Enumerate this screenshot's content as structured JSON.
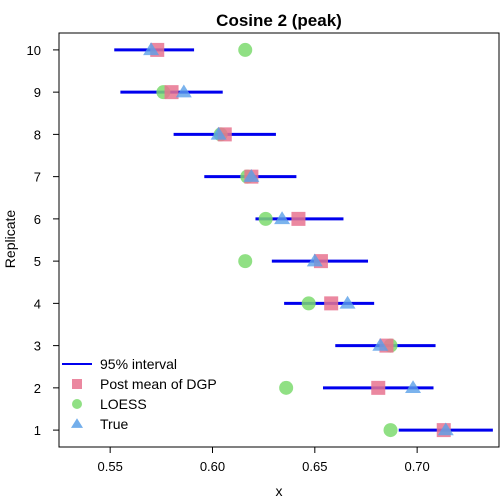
{
  "chart_data": {
    "type": "scatter",
    "title": "Cosine 2 (peak)",
    "xlabel": "x",
    "ylabel": "Replicate",
    "xlim": [
      0.525,
      0.74
    ],
    "ylim": [
      0.6,
      10.4
    ],
    "x_ticks": [
      0.55,
      0.6,
      0.65,
      0.7
    ],
    "x_tick_labels": [
      "0.55",
      "0.60",
      "0.65",
      "0.70"
    ],
    "y_ticks": [
      1,
      2,
      3,
      4,
      5,
      6,
      7,
      8,
      9,
      10
    ],
    "y_tick_labels": [
      "1",
      "2",
      "3",
      "4",
      "5",
      "6",
      "7",
      "8",
      "9",
      "10"
    ],
    "grid": false,
    "legend_position": "bottom-left",
    "colors": {
      "interval": "#0000ee",
      "post_mean": "#e8738f",
      "loess": "#7ddb6e",
      "true": "#5aa0e8"
    },
    "legend": [
      {
        "label": "95% interval",
        "marker": "line",
        "color_key": "interval"
      },
      {
        "label": "Post mean of DGP",
        "marker": "square",
        "color_key": "post_mean"
      },
      {
        "label": "LOESS",
        "marker": "circle",
        "color_key": "loess"
      },
      {
        "label": "True",
        "marker": "triangle",
        "color_key": "true"
      }
    ],
    "replicates": [
      {
        "replicate": 1,
        "interval": [
          0.691,
          0.737
        ],
        "post_mean": 0.713,
        "loess": 0.687,
        "true": 0.714
      },
      {
        "replicate": 2,
        "interval": [
          0.654,
          0.708
        ],
        "post_mean": 0.681,
        "loess": 0.636,
        "true": 0.698
      },
      {
        "replicate": 3,
        "interval": [
          0.66,
          0.709
        ],
        "post_mean": 0.685,
        "loess": 0.687,
        "true": 0.682
      },
      {
        "replicate": 4,
        "interval": [
          0.635,
          0.679
        ],
        "post_mean": 0.658,
        "loess": 0.647,
        "true": 0.666
      },
      {
        "replicate": 5,
        "interval": [
          0.629,
          0.676
        ],
        "post_mean": 0.653,
        "loess": 0.616,
        "true": 0.65
      },
      {
        "replicate": 6,
        "interval": [
          0.621,
          0.664
        ],
        "post_mean": 0.642,
        "loess": 0.626,
        "true": 0.634
      },
      {
        "replicate": 7,
        "interval": [
          0.596,
          0.641
        ],
        "post_mean": 0.619,
        "loess": 0.617,
        "true": 0.619
      },
      {
        "replicate": 8,
        "interval": [
          0.581,
          0.631
        ],
        "post_mean": 0.606,
        "loess": 0.604,
        "true": 0.603
      },
      {
        "replicate": 9,
        "interval": [
          0.555,
          0.605
        ],
        "post_mean": 0.58,
        "loess": 0.576,
        "true": 0.586
      },
      {
        "replicate": 10,
        "interval": [
          0.552,
          0.591
        ],
        "post_mean": 0.573,
        "loess": 0.616,
        "true": 0.57
      }
    ]
  }
}
